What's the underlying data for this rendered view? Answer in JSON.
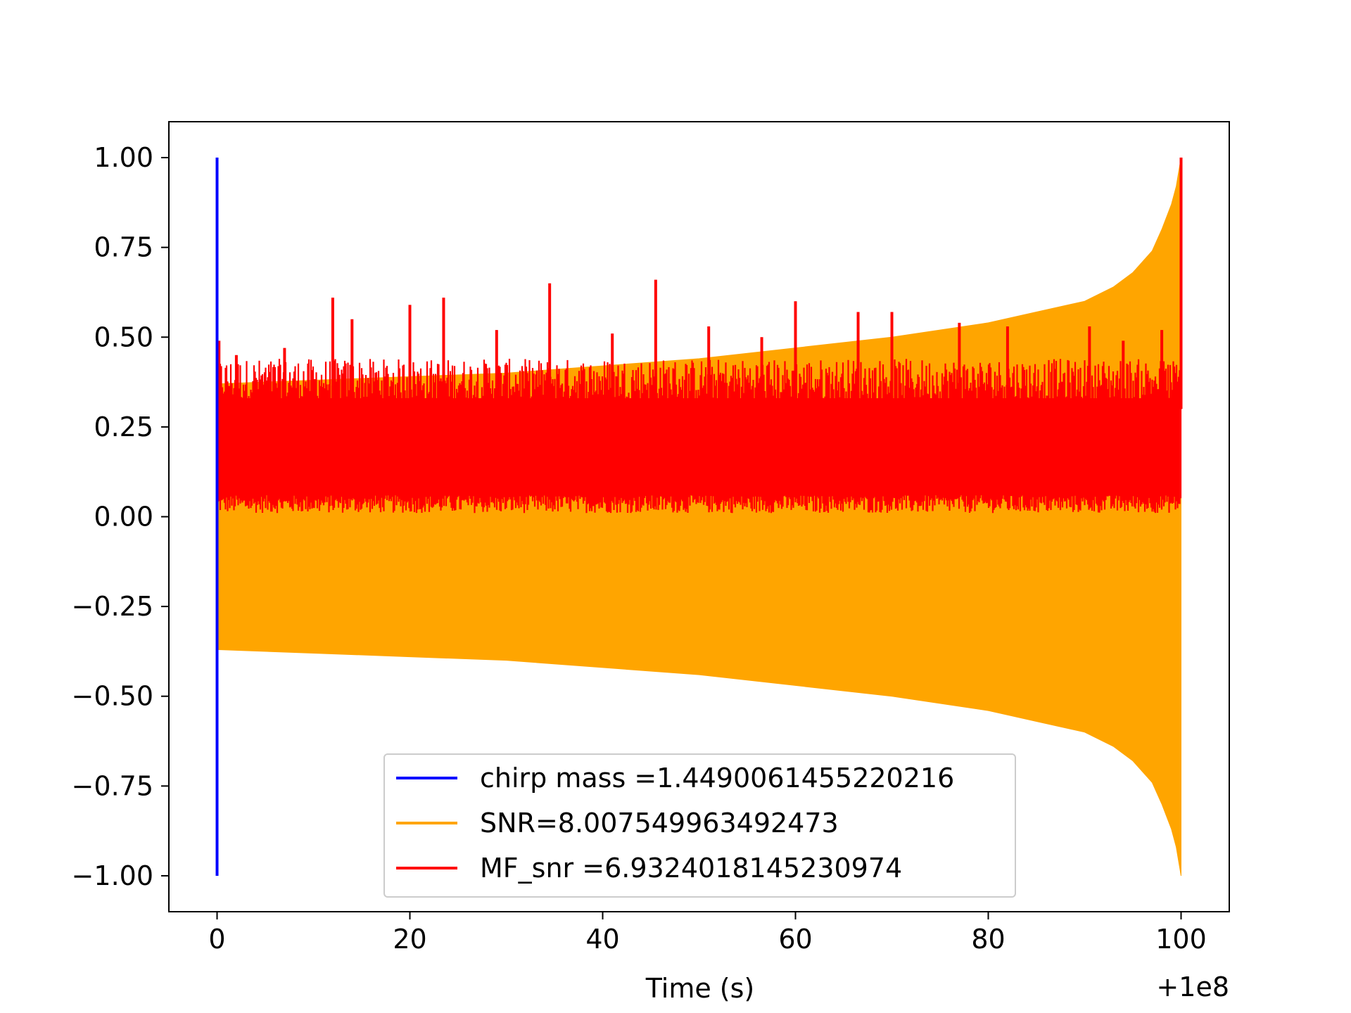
{
  "chart_data": {
    "type": "line",
    "xlabel": "Time (s)",
    "ylabel": "",
    "x_offset_label": "+1e8",
    "xlim": [
      -5,
      105
    ],
    "ylim": [
      -1.1,
      1.1
    ],
    "xticks": [
      0,
      20,
      40,
      60,
      80,
      100
    ],
    "xtick_labels": [
      "0",
      "20",
      "40",
      "60",
      "80",
      "100"
    ],
    "yticks": [
      1.0,
      0.75,
      0.5,
      0.25,
      0.0,
      -0.25,
      -0.5,
      -0.75,
      -1.0
    ],
    "ytick_labels": [
      "1.00",
      "0.75",
      "0.50",
      "0.25",
      "0.00",
      "−0.25",
      "−0.50",
      "−0.75",
      "−1.00"
    ],
    "grid": false,
    "legend_position": "lower-center",
    "series": [
      {
        "name": "chirp mass =1.4490061455220216",
        "color": "#0000ff",
        "x": [
          0.0,
          0.0,
          0.0,
          0.0
        ],
        "y": [
          0.0,
          1.0,
          -1.0,
          0.0
        ]
      },
      {
        "name": "SNR=8.007549963492473",
        "color": "#ffa500",
        "envelope_x": [
          0,
          10,
          20,
          30,
          40,
          50,
          60,
          70,
          80,
          85,
          90,
          93,
          95,
          97,
          98,
          99,
          99.5,
          100
        ],
        "envelope_upper": [
          0.37,
          0.38,
          0.39,
          0.4,
          0.42,
          0.44,
          0.47,
          0.5,
          0.54,
          0.57,
          0.6,
          0.64,
          0.68,
          0.74,
          0.8,
          0.87,
          0.92,
          1.0
        ],
        "envelope_lower": [
          -0.37,
          -0.38,
          -0.39,
          -0.4,
          -0.42,
          -0.44,
          -0.47,
          -0.5,
          -0.54,
          -0.57,
          -0.6,
          -0.64,
          -0.68,
          -0.74,
          -0.8,
          -0.87,
          -0.92,
          -1.0
        ]
      },
      {
        "name": "MF_snr =6.9324018145230974",
        "color": "#ff0000",
        "band_lower": 0.01,
        "band_upper": 0.4,
        "peaks": [
          {
            "x": 0.2,
            "y": 0.49
          },
          {
            "x": 2.0,
            "y": 0.45
          },
          {
            "x": 7.0,
            "y": 0.47
          },
          {
            "x": 12.0,
            "y": 0.61
          },
          {
            "x": 14.0,
            "y": 0.55
          },
          {
            "x": 20.0,
            "y": 0.59
          },
          {
            "x": 23.5,
            "y": 0.61
          },
          {
            "x": 29.0,
            "y": 0.52
          },
          {
            "x": 34.5,
            "y": 0.65
          },
          {
            "x": 41.0,
            "y": 0.51
          },
          {
            "x": 45.5,
            "y": 0.66
          },
          {
            "x": 51.0,
            "y": 0.53
          },
          {
            "x": 56.5,
            "y": 0.5
          },
          {
            "x": 60.0,
            "y": 0.6
          },
          {
            "x": 66.5,
            "y": 0.57
          },
          {
            "x": 70.0,
            "y": 0.57
          },
          {
            "x": 77.0,
            "y": 0.54
          },
          {
            "x": 82.0,
            "y": 0.53
          },
          {
            "x": 90.5,
            "y": 0.53
          },
          {
            "x": 94.0,
            "y": 0.49
          },
          {
            "x": 98.0,
            "y": 0.52
          },
          {
            "x": 100.0,
            "y": 1.0
          }
        ]
      }
    ]
  }
}
